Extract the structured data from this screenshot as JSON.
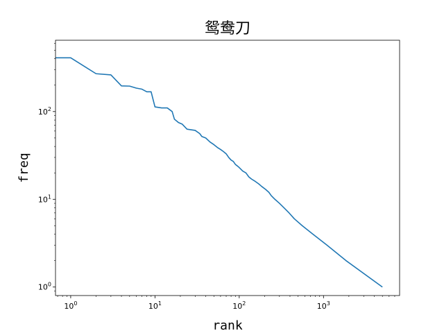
{
  "chart_data": {
    "type": "line",
    "title": "鸳鸯刀",
    "xlabel": "rank",
    "ylabel": "freq",
    "xscale": "log",
    "yscale": "log",
    "xlim": [
      0.66,
      8000
    ],
    "ylim": [
      0.8,
      650
    ],
    "grid": false,
    "x_ticks": [
      {
        "value": 1,
        "base": "10",
        "exp": "0"
      },
      {
        "value": 10,
        "base": "10",
        "exp": "1"
      },
      {
        "value": 100,
        "base": "10",
        "exp": "2"
      },
      {
        "value": 1000,
        "base": "10",
        "exp": "3"
      }
    ],
    "y_ticks": [
      {
        "value": 1,
        "base": "10",
        "exp": "0"
      },
      {
        "value": 10,
        "base": "10",
        "exp": "1"
      },
      {
        "value": 100,
        "base": "10",
        "exp": "2"
      }
    ],
    "series": [
      {
        "color": "#1f77b4",
        "points": [
          [
            0.66,
            410
          ],
          [
            1,
            410
          ],
          [
            2,
            270
          ],
          [
            3,
            262
          ],
          [
            4,
            196
          ],
          [
            5,
            195
          ],
          [
            6,
            185
          ],
          [
            7,
            180
          ],
          [
            8,
            168
          ],
          [
            9,
            168
          ],
          [
            10,
            113
          ],
          [
            12,
            110
          ],
          [
            14,
            110
          ],
          [
            16,
            100
          ],
          [
            17,
            82
          ],
          [
            19,
            75
          ],
          [
            21,
            72
          ],
          [
            24,
            63
          ],
          [
            30,
            61
          ],
          [
            34,
            56
          ],
          [
            36,
            52
          ],
          [
            40,
            50
          ],
          [
            45,
            45
          ],
          [
            50,
            42
          ],
          [
            55,
            39
          ],
          [
            60,
            37
          ],
          [
            65,
            35
          ],
          [
            70,
            33
          ],
          [
            75,
            30
          ],
          [
            80,
            28
          ],
          [
            85,
            27
          ],
          [
            90,
            25
          ],
          [
            95,
            24
          ],
          [
            100,
            23
          ],
          [
            110,
            21
          ],
          [
            120,
            20
          ],
          [
            130,
            18
          ],
          [
            140,
            17
          ],
          [
            155,
            16
          ],
          [
            170,
            15
          ],
          [
            185,
            14
          ],
          [
            205,
            13
          ],
          [
            225,
            12
          ],
          [
            240,
            11
          ],
          [
            265,
            10
          ],
          [
            300,
            9
          ],
          [
            340,
            8
          ],
          [
            390,
            7
          ],
          [
            450,
            6
          ],
          [
            560,
            5
          ],
          [
            750,
            4
          ],
          [
            1100,
            3
          ],
          [
            1850,
            2
          ],
          [
            5000,
            1
          ]
        ]
      }
    ]
  }
}
